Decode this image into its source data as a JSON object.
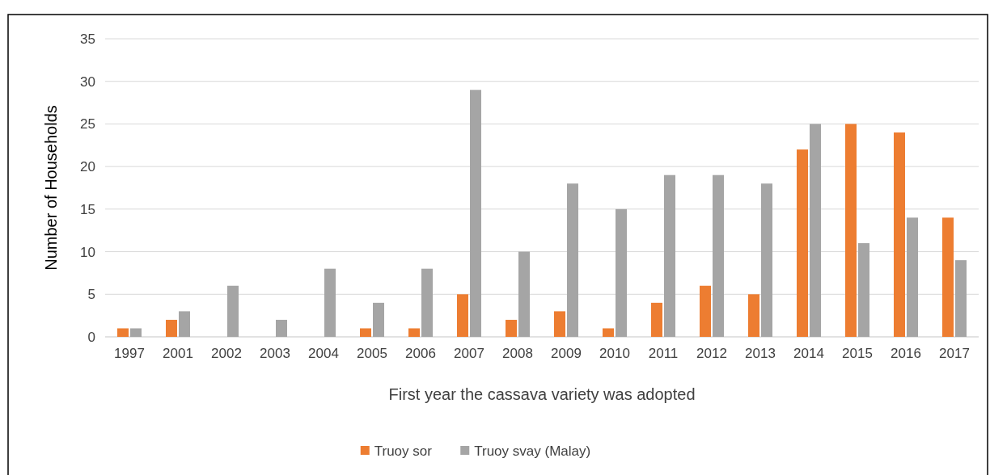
{
  "chart_data": {
    "type": "bar",
    "xlabel": "First year the cassava variety was adopted",
    "ylabel": "Number of Households",
    "categories": [
      "1997",
      "2001",
      "2002",
      "2003",
      "2004",
      "2005",
      "2006",
      "2007",
      "2008",
      "2009",
      "2010",
      "2011",
      "2012",
      "2013",
      "2014",
      "2015",
      "2016",
      "2017"
    ],
    "series": [
      {
        "name": "Truoy sor",
        "color": "#ed7d31",
        "values": [
          1,
          2,
          0,
          0,
          0,
          1,
          1,
          5,
          2,
          3,
          1,
          4,
          6,
          5,
          22,
          25,
          24,
          14
        ]
      },
      {
        "name": "Truoy svay (Malay)",
        "color": "#a5a5a5",
        "values": [
          1,
          3,
          6,
          2,
          8,
          4,
          8,
          29,
          10,
          18,
          15,
          19,
          19,
          18,
          25,
          11,
          14,
          9
        ]
      }
    ],
    "ylim": [
      0,
      35
    ],
    "yticks": [
      0,
      5,
      10,
      15,
      20,
      25,
      30,
      35
    ],
    "grid": "y",
    "legend": "bottom"
  }
}
